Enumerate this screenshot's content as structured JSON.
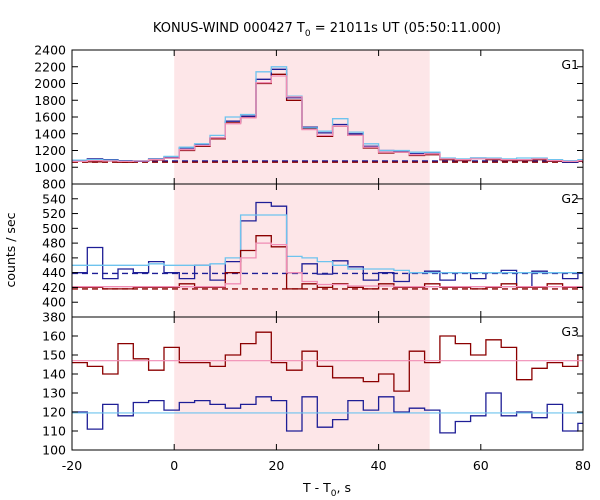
{
  "chart_data": {
    "type": "line",
    "title_main": "KONUS-WIND 000427 T",
    "title_sub": "0",
    "title_rest": " = 21011s UT (05:50:11.000)",
    "ylabel": "counts / sec",
    "xlabel_main": "T - T",
    "xlabel_sub": "0",
    "xlabel_rest": ", s",
    "xlim": [
      -20,
      80
    ],
    "x_ticks": [
      "-20",
      "0",
      "20",
      "40",
      "60",
      "80"
    ],
    "x_tick_values": [
      -20,
      0,
      20,
      40,
      60,
      80
    ],
    "shaded_interval": [
      0,
      50
    ],
    "colors": {
      "shade": "#fde6e8",
      "dark_red": "#8b0000",
      "dark_blue": "#1e1e96",
      "light_blue": "#6ec3ee",
      "pink": "#f08cb4"
    },
    "panels": [
      {
        "label": "G1",
        "ylim": [
          800,
          2400
        ],
        "y_ticks": [
          800,
          1000,
          1200,
          1400,
          1600,
          1800,
          2000,
          2200,
          2400
        ],
        "y_tick_labels": [
          "800",
          "1000",
          "1200",
          "1400",
          "1600",
          "1800",
          "2000",
          "2200",
          "2400"
        ],
        "bin_edges": [
          -20,
          -17,
          -14,
          -11,
          -8,
          -5,
          -2,
          1,
          4,
          7,
          10,
          13,
          16,
          19,
          22,
          25,
          28,
          31,
          34,
          37,
          40,
          43,
          46,
          49,
          52,
          55,
          58,
          61,
          64,
          67,
          70,
          73,
          76,
          79,
          80
        ],
        "series": [
          {
            "color": "dark_red",
            "style": "step",
            "values": [
              1070,
              1065,
              1075,
              1060,
              1080,
              1085,
              1110,
              1200,
              1250,
              1340,
              1530,
              1600,
              2000,
              2110,
              1800,
              1460,
              1370,
              1490,
              1380,
              1230,
              1170,
              1180,
              1140,
              1150,
              1090,
              1080,
              1100,
              1090,
              1080,
              1080,
              1090,
              1070,
              1060,
              1070
            ]
          },
          {
            "color": "dark_blue",
            "style": "step",
            "values": [
              1080,
              1100,
              1090,
              1080,
              1070,
              1100,
              1120,
              1230,
              1270,
              1350,
              1550,
              1610,
              2050,
              2170,
              1830,
              1480,
              1410,
              1510,
              1400,
              1250,
              1200,
              1190,
              1160,
              1170,
              1100,
              1090,
              1110,
              1100,
              1090,
              1090,
              1100,
              1080,
              1060,
              1080
            ]
          },
          {
            "color": "light_blue",
            "style": "step",
            "values": [
              1085,
              1090,
              1085,
              1075,
              1080,
              1095,
              1130,
              1240,
              1280,
              1380,
              1600,
              1630,
              2140,
              2200,
              1850,
              1470,
              1430,
              1580,
              1420,
              1280,
              1200,
              1200,
              1180,
              1180,
              1110,
              1100,
              1110,
              1110,
              1100,
              1110,
              1110,
              1090,
              1080,
              1090
            ]
          },
          {
            "color": "pink",
            "style": "step",
            "values": [
              1070,
              1080,
              1075,
              1070,
              1075,
              1090,
              1110,
              1210,
              1260,
              1350,
              1520,
              1590,
              2010,
              2090,
              1840,
              1450,
              1380,
              1490,
              1380,
              1240,
              1180,
              1180,
              1150,
              1160,
              1100,
              1090,
              1100,
              1100,
              1090,
              1090,
              1100,
              1080,
              1070,
              1080
            ]
          }
        ],
        "levels": [
          {
            "color": "dark_blue",
            "y": 1075,
            "dashed": true
          },
          {
            "color": "dark_red",
            "y": 1060,
            "dashed": true
          }
        ]
      },
      {
        "label": "G2",
        "ylim": [
          380,
          560
        ],
        "y_ticks": [
          380,
          400,
          420,
          440,
          460,
          480,
          500,
          520,
          540
        ],
        "y_tick_labels": [
          "380",
          "400",
          "420",
          "440",
          "460",
          "480",
          "500",
          "520",
          "540"
        ],
        "bin_edges": [
          -20,
          -17,
          -14,
          -11,
          -8,
          -5,
          -2,
          1,
          4,
          7,
          10,
          13,
          16,
          19,
          22,
          25,
          28,
          31,
          34,
          37,
          40,
          43,
          46,
          49,
          52,
          55,
          58,
          61,
          64,
          67,
          70,
          73,
          76,
          79,
          80
        ],
        "series": [
          {
            "color": "dark_blue",
            "style": "step",
            "values": [
              440,
              474,
              432,
              445,
              440,
              455,
              440,
              432,
              450,
              430,
              455,
              510,
              535,
              530,
              440,
              452,
              438,
              456,
              448,
              430,
              440,
              428,
              440,
              442,
              430,
              440,
              432,
              440,
              443,
              420,
              442,
              440,
              432,
              439
            ]
          },
          {
            "color": "light_blue",
            "style": "step",
            "values": [
              450,
              450,
              450,
              450,
              450,
              452,
              450,
              450,
              450,
              452,
              460,
              518,
              518,
              518,
              462,
              460,
              455,
              450,
              445,
              445,
              445,
              443,
              440,
              440,
              440,
              440,
              440,
              440,
              440,
              440,
              440,
              440,
              440,
              440
            ]
          },
          {
            "color": "dark_red",
            "style": "step",
            "values": [
              420,
              420,
              418,
              418,
              420,
              420,
              420,
              425,
              420,
              420,
              440,
              470,
              490,
              475,
              418,
              425,
              420,
              425,
              420,
              418,
              425,
              420,
              420,
              425,
              420,
              420,
              418,
              420,
              425,
              420,
              420,
              425,
              420,
              420
            ]
          },
          {
            "color": "pink",
            "style": "step",
            "values": [
              421,
              421,
              421,
              421,
              421,
              421,
              421,
              421,
              421,
              421,
              425,
              460,
              480,
              478,
              440,
              428,
              424,
              424,
              422,
              422,
              422,
              421,
              421,
              421,
              421,
              421,
              421,
              421,
              421,
              421,
              421,
              421,
              421,
              421
            ]
          }
        ],
        "levels": [
          {
            "color": "dark_blue",
            "y": 439,
            "dashed": true
          },
          {
            "color": "dark_red",
            "y": 418,
            "dashed": true
          }
        ]
      },
      {
        "label": "G3",
        "ylim": [
          100,
          170
        ],
        "y_ticks": [
          100,
          110,
          120,
          130,
          140,
          150,
          160
        ],
        "y_tick_labels": [
          "100",
          "110",
          "120",
          "130",
          "140",
          "150",
          "160"
        ],
        "bin_edges": [
          -20,
          -17,
          -14,
          -11,
          -8,
          -5,
          -2,
          1,
          4,
          7,
          10,
          13,
          16,
          19,
          22,
          25,
          28,
          31,
          34,
          37,
          40,
          43,
          46,
          49,
          52,
          55,
          58,
          61,
          64,
          67,
          70,
          73,
          76,
          79,
          80
        ],
        "series": [
          {
            "color": "dark_red",
            "style": "step",
            "values": [
              146,
              144,
              140,
              156,
              148,
              142,
              154,
              146,
              146,
              144,
              150,
              156,
              162,
              146,
              142,
              152,
              144,
              138,
              138,
              136,
              140,
              131,
              152,
              146,
              160,
              156,
              150,
              158,
              154,
              137,
              143,
              146,
              144,
              150
            ]
          },
          {
            "color": "dark_blue",
            "style": "step",
            "values": [
              120,
              111,
              124,
              118,
              125,
              126,
              121,
              125,
              126,
              124,
              122,
              124,
              128,
              126,
              110,
              128,
              112,
              116,
              126,
              121,
              128,
              120,
              122,
              121,
              109,
              115,
              118,
              130,
              118,
              120,
              117,
              124,
              110,
              114
            ]
          },
          {
            "color": "pink",
            "style": "flat",
            "values": [
              147
            ]
          },
          {
            "color": "light_blue",
            "style": "flat",
            "values": [
              119.5
            ]
          }
        ],
        "levels": []
      }
    ]
  }
}
